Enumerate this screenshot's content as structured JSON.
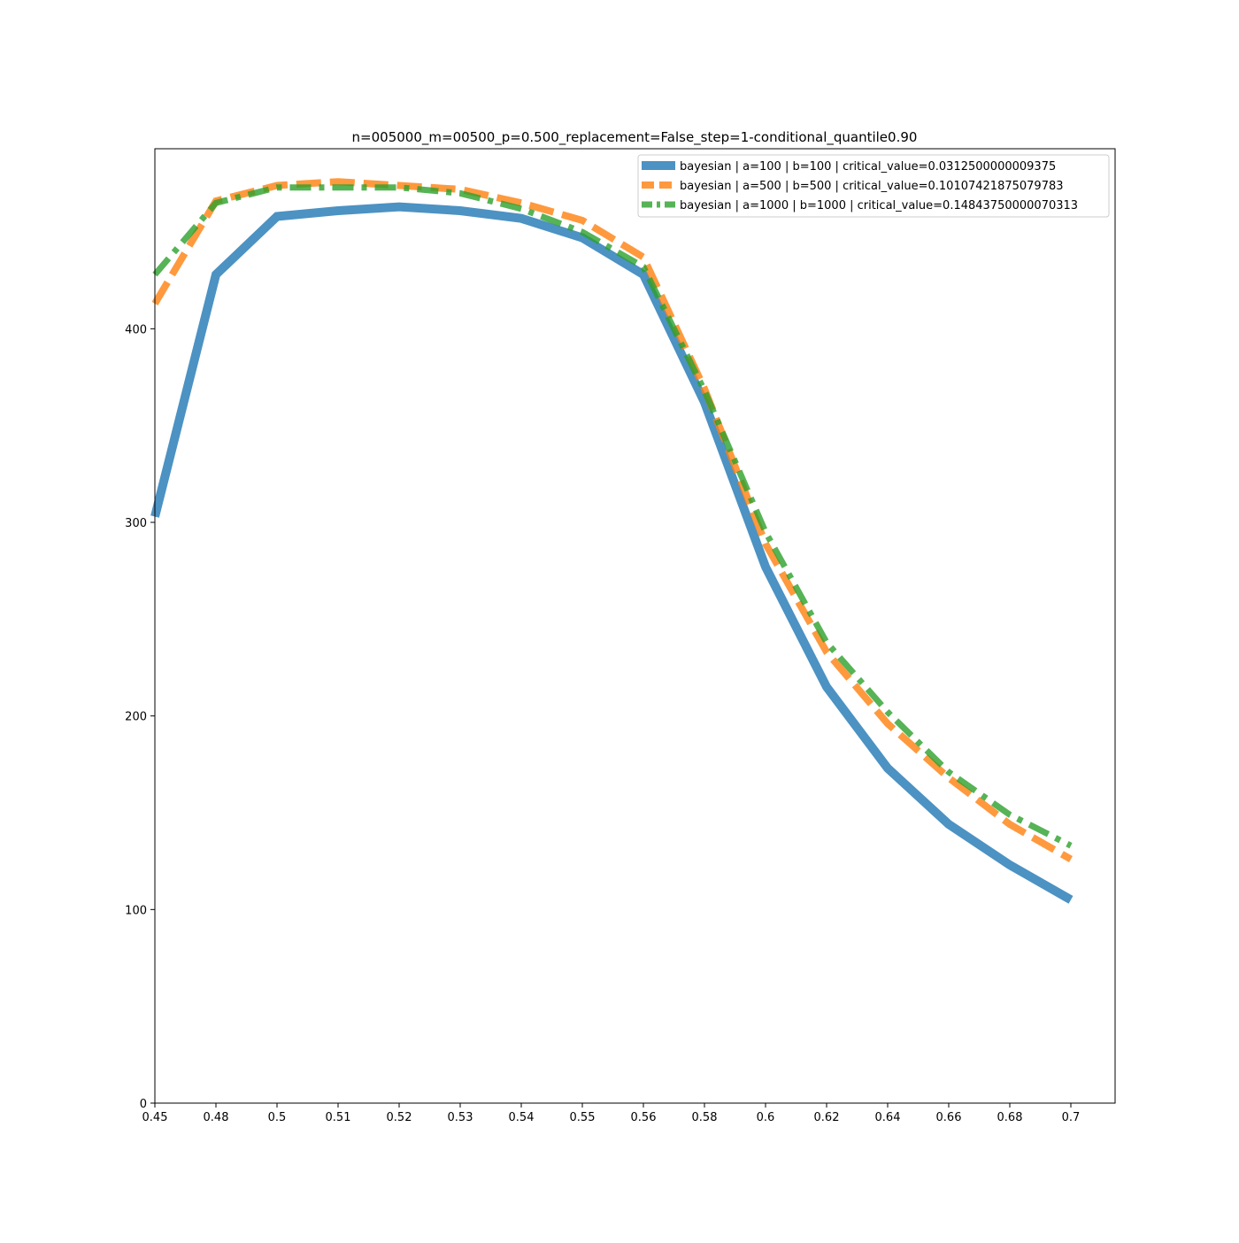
{
  "chart_data": {
    "type": "line",
    "title": "n=005000_m=00500_p=0.500_replacement=False_step=1-conditional_quantile0.90",
    "xlabel": "",
    "ylabel": "",
    "categories": [
      "0.45",
      "0.48",
      "0.5",
      "0.51",
      "0.52",
      "0.53",
      "0.54",
      "0.55",
      "0.56",
      "0.58",
      "0.6",
      "0.62",
      "0.64",
      "0.66",
      "0.68",
      "0.7"
    ],
    "yticks": [
      0,
      100,
      200,
      300,
      400
    ],
    "ylim": [
      0,
      493
    ],
    "grid": false,
    "legend_position": "upper right",
    "series": [
      {
        "name": "bayesian | a=100 | b=100 | critical_value=0.0312500000009375",
        "color": "#1f77b4",
        "style": "solid",
        "values": [
          303,
          428,
          458,
          461,
          463,
          461,
          457,
          447,
          428,
          362,
          277,
          215,
          173,
          144,
          123,
          105
        ]
      },
      {
        "name": "bayesian | a=500 | b=500 | critical_value=0.10107421875079783",
        "color": "#ff7f0e",
        "style": "dashed",
        "values": [
          413,
          466,
          474,
          476,
          474,
          472,
          465,
          456,
          437,
          369,
          289,
          233,
          196,
          168,
          144,
          126
        ]
      },
      {
        "name": "bayesian | a=1000 | b=1000 | critical_value=0.14843750000070313",
        "color": "#2ca02c",
        "style": "dashdot",
        "values": [
          428,
          465,
          473,
          473,
          473,
          470,
          462,
          450,
          432,
          368,
          295,
          238,
          202,
          171,
          149,
          133
        ]
      }
    ]
  }
}
